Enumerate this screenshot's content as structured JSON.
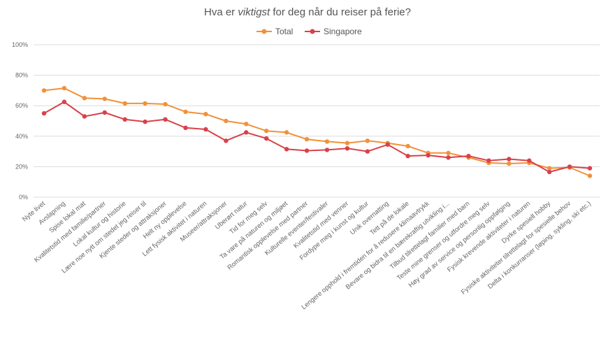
{
  "chart_data": {
    "type": "line",
    "title_parts": [
      "Hva er ",
      "viktigst",
      " for deg når du reiser på ferie?"
    ],
    "xlabel": "",
    "ylabel": "",
    "ylim": [
      0,
      100
    ],
    "y_ticks": [
      "0%",
      "20%",
      "40%",
      "60%",
      "80%",
      "100%"
    ],
    "y_tick_values": [
      0,
      20,
      40,
      60,
      80,
      100
    ],
    "grid": true,
    "legend_position": "top-center",
    "categories": [
      "Nyte livet",
      "Avslapning",
      "Spise lokal mat",
      "Kvalitetstid med familie/partner",
      "Lokal kultur og historie",
      "Lære noe nytt om stedet jeg reiser til",
      "Kjente steder og attraksjoner",
      "Helt ny opplevelse",
      "Lett fysisk aktivitet i naturen",
      "Museer/attraksjoner",
      "Uberørt natur",
      "Tid for meg selv",
      "Ta vare på naturen og miljøet",
      "Romantisk opplevelse med partner",
      "Kulturelle eventer/festivaler",
      "Kvalitetstid med venner",
      "Fordype meg i kunst og kultur",
      "Unik overnatting",
      "Tett på de lokale",
      "Lengere opphold i fremtiden for å redusere klimaavtrykk",
      "Bevare og bidra til en bærekraftig utvikling i...",
      "Tilbud tilrettelagt familier med barn",
      "Teste mine grenser og utfordre meg selv",
      "Høy grad av service og personlig oppfølging",
      "Fysisk krevende aktiviteter i naturen",
      "Dyrke spesiell hobby",
      "Fysiske aktiviteter tilrettelagt for spesielle behov",
      "Delta i konkurranser (løping, sykling, ski etc.)"
    ],
    "series": [
      {
        "name": "Total",
        "color": "#F0923A",
        "values": [
          70,
          71.5,
          65,
          64.5,
          61.5,
          61.5,
          61,
          56,
          54.5,
          50,
          48,
          43.5,
          42.5,
          38,
          36.5,
          35.5,
          37,
          35.5,
          33.5,
          29,
          29,
          26,
          22.5,
          22,
          22.5,
          19,
          19.5,
          14
        ]
      },
      {
        "name": "Singapore",
        "color": "#D9414A",
        "values": [
          55,
          62.5,
          53,
          55.5,
          51,
          49.5,
          51,
          45.5,
          44.5,
          37,
          42.5,
          38.5,
          31.5,
          30.5,
          31,
          32,
          30,
          34.5,
          27,
          27.5,
          26,
          27,
          24,
          25,
          24,
          16.5,
          20,
          19
        ]
      }
    ]
  }
}
